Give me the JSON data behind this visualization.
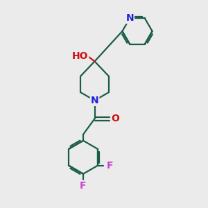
{
  "bg_color": "#ebebeb",
  "bond_color": "#1a5c4a",
  "N_color": "#2020dd",
  "O_color": "#cc1010",
  "F_color": "#cc44cc",
  "H_color": "#777777",
  "line_width": 1.6,
  "font_size": 10,
  "fig_size": [
    3.0,
    3.0
  ],
  "dpi": 100,
  "xlim": [
    0,
    10
  ],
  "ylim": [
    0,
    10
  ]
}
